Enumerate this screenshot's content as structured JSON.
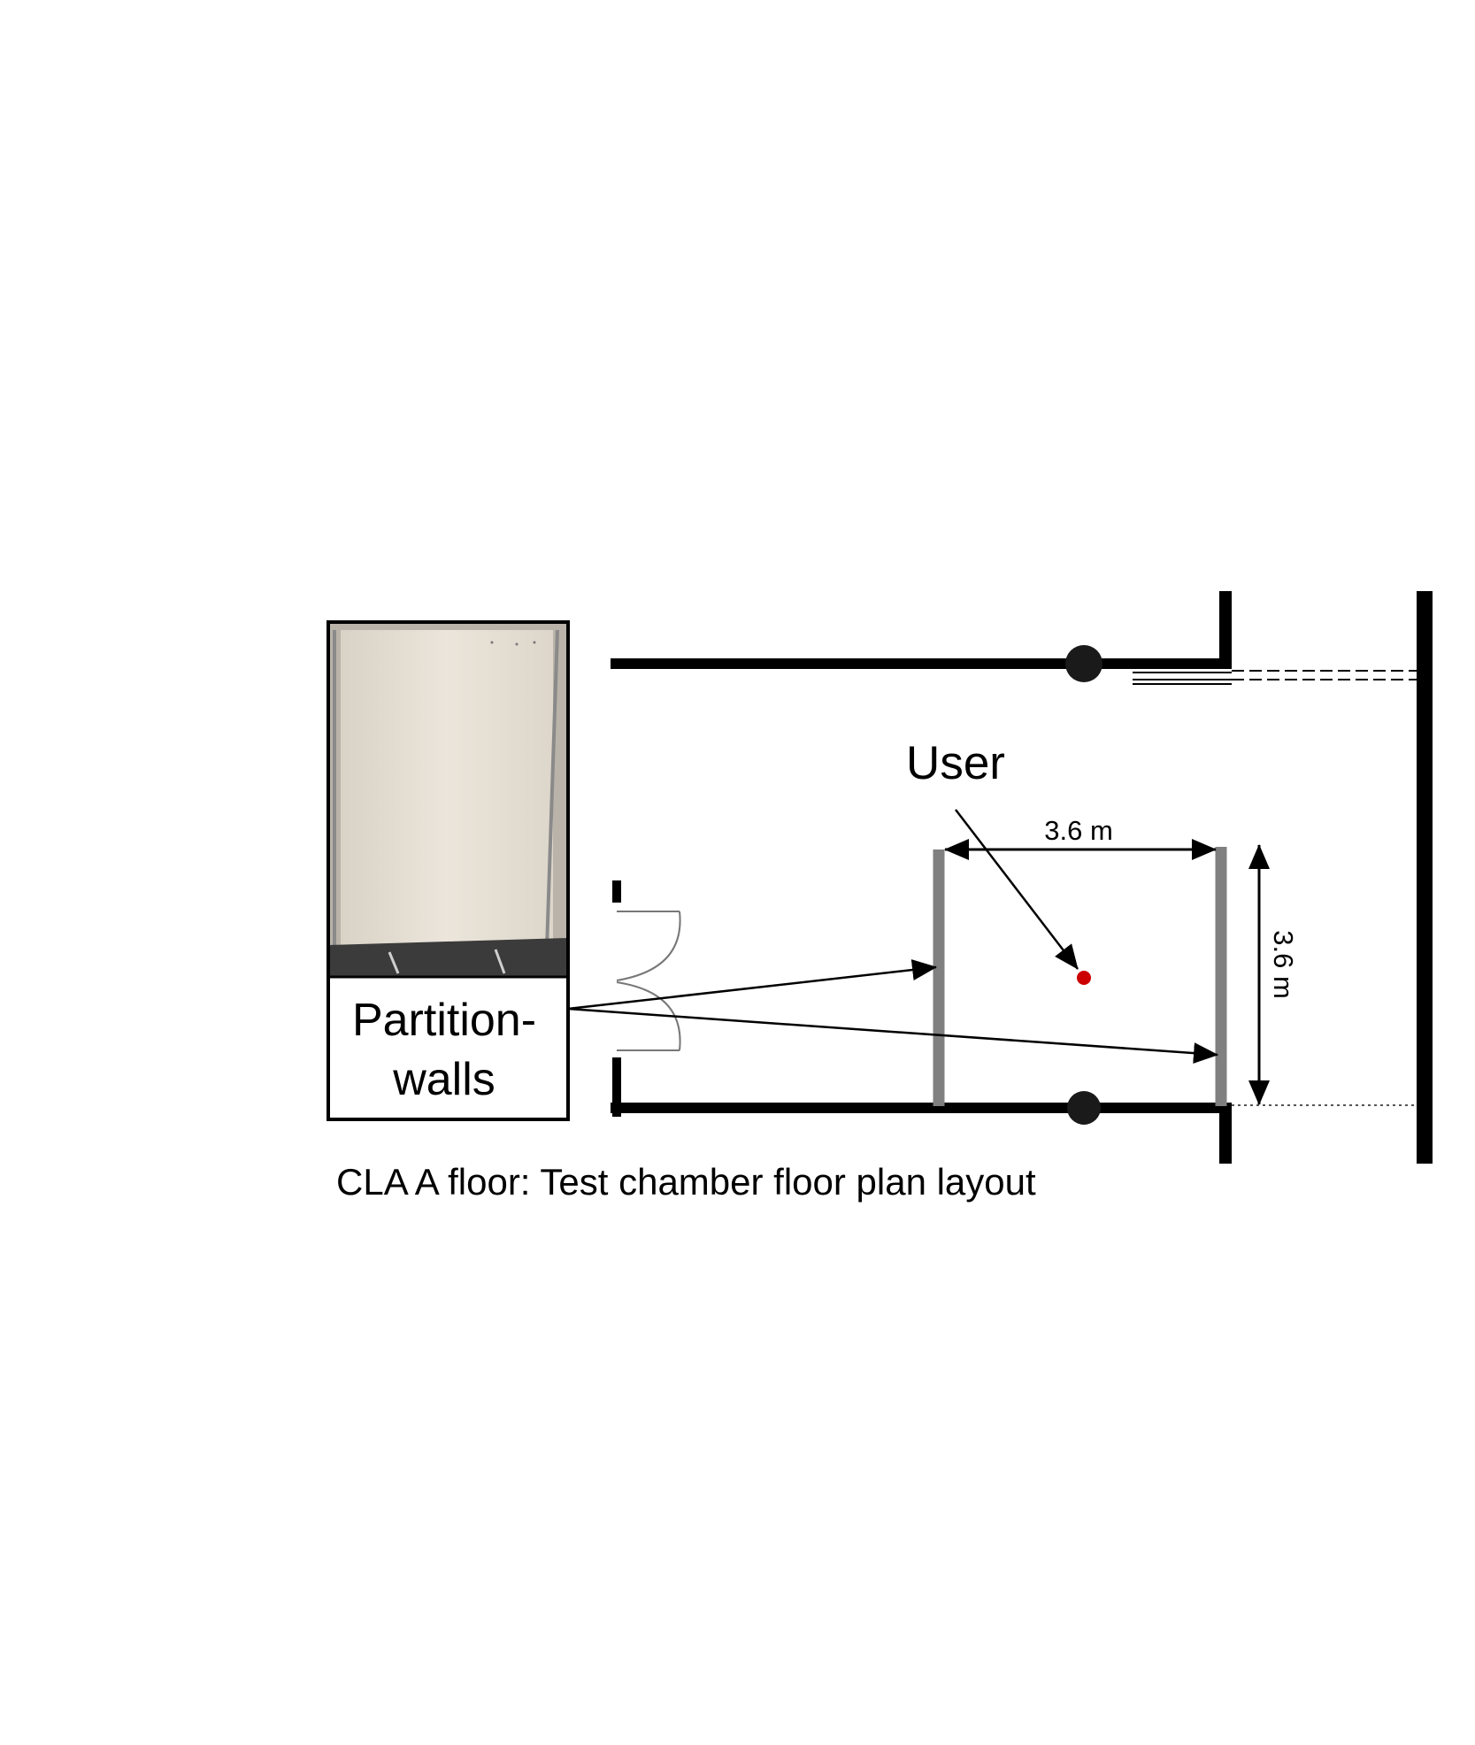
{
  "figure": {
    "caption": "CLA A floor: Test chamber floor plan layout",
    "user_label": "User",
    "partition_label_line1": "Partition-",
    "partition_label_line2": "walls",
    "dim_width_label": "3.6 m",
    "dim_depth_label": "3.6 m"
  },
  "colors": {
    "wall": "#000000",
    "partition_wall": "#808080",
    "user_marker": "#cc0000",
    "photo_panel": "#e8e2d8",
    "photo_floor": "#3a3a3a"
  },
  "dimensions": {
    "width_m": 3.6,
    "depth_m": 3.6
  }
}
